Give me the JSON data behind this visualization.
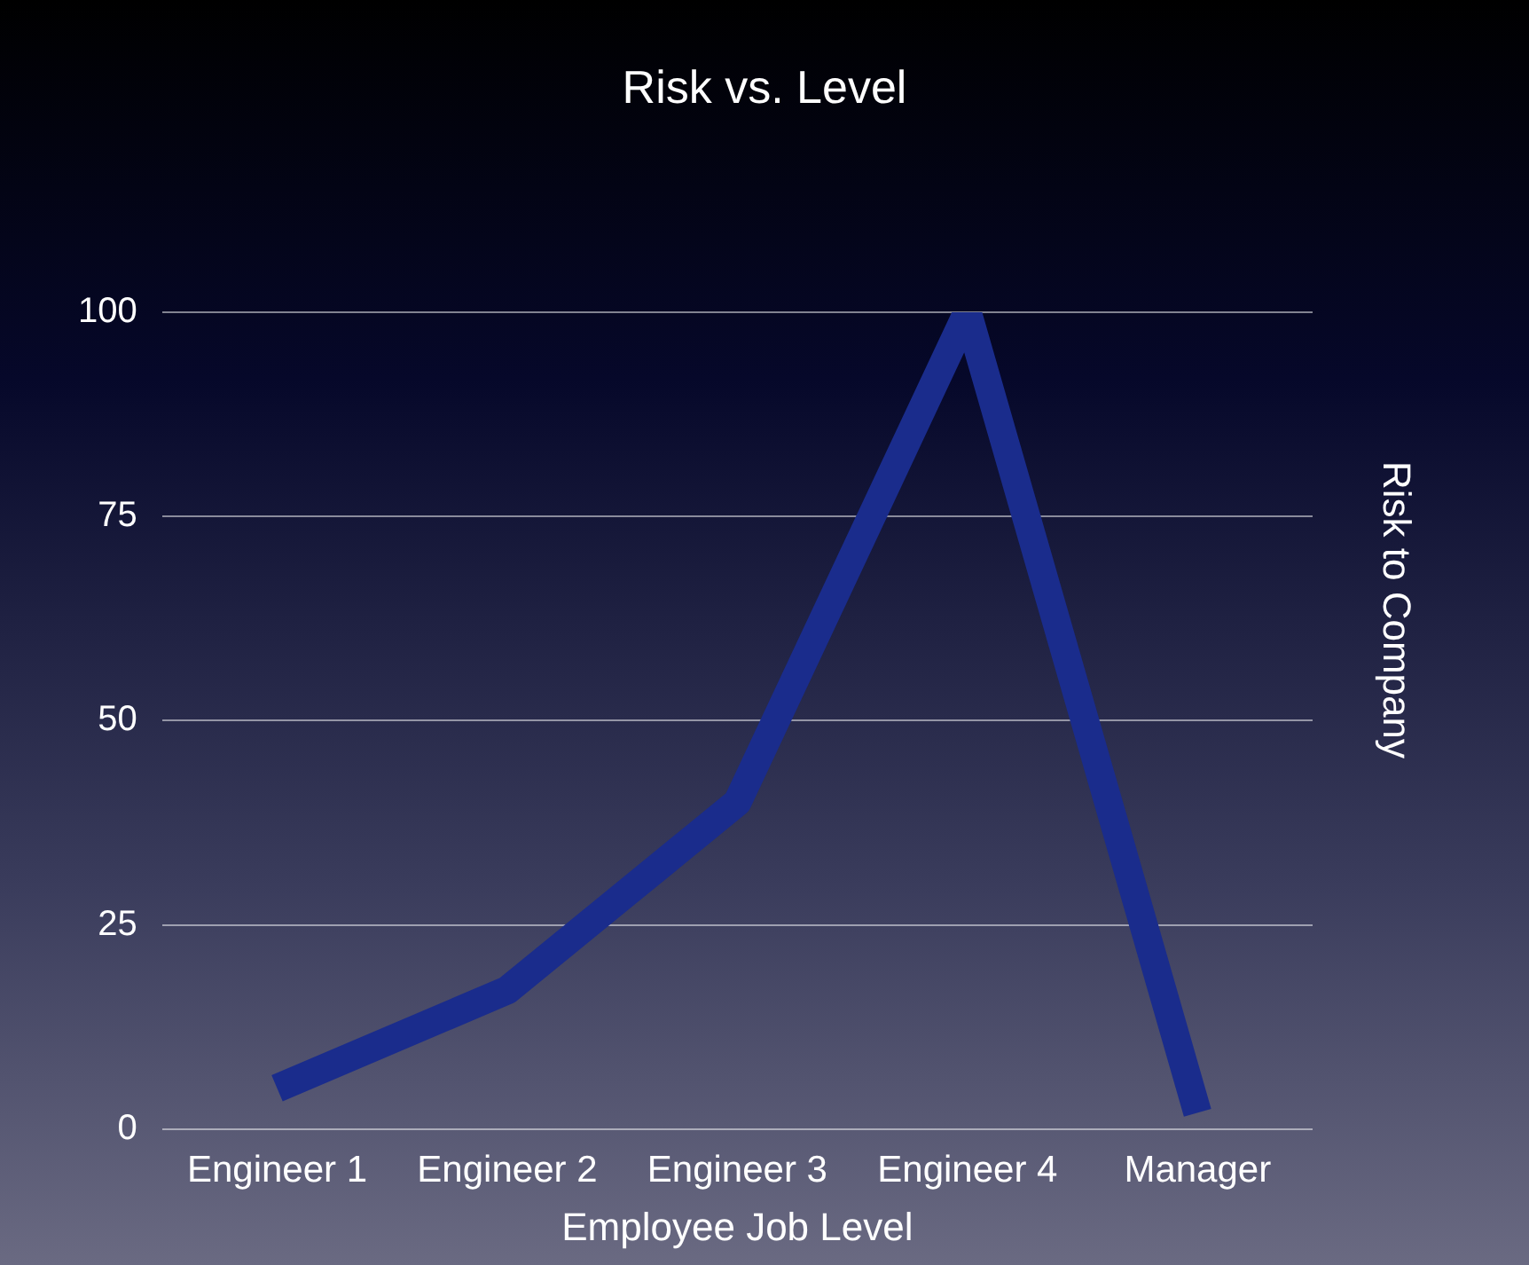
{
  "chart_data": {
    "type": "line",
    "title": "Risk vs. Level",
    "xlabel": "Employee Job Level",
    "ylabel": "Risk to Company",
    "categories": [
      "Engineer 1",
      "Engineer 2",
      "Engineer 3",
      "Engineer 4",
      "Manager"
    ],
    "series": [
      {
        "color": "#1a2c8c",
        "values": [
          5,
          17,
          40,
          100,
          2
        ]
      }
    ],
    "ylim": [
      0,
      100
    ],
    "yticks": [
      0,
      25,
      50,
      75,
      100
    ],
    "grid": "y",
    "legend": false,
    "marker": "none",
    "line_style": "solid"
  }
}
